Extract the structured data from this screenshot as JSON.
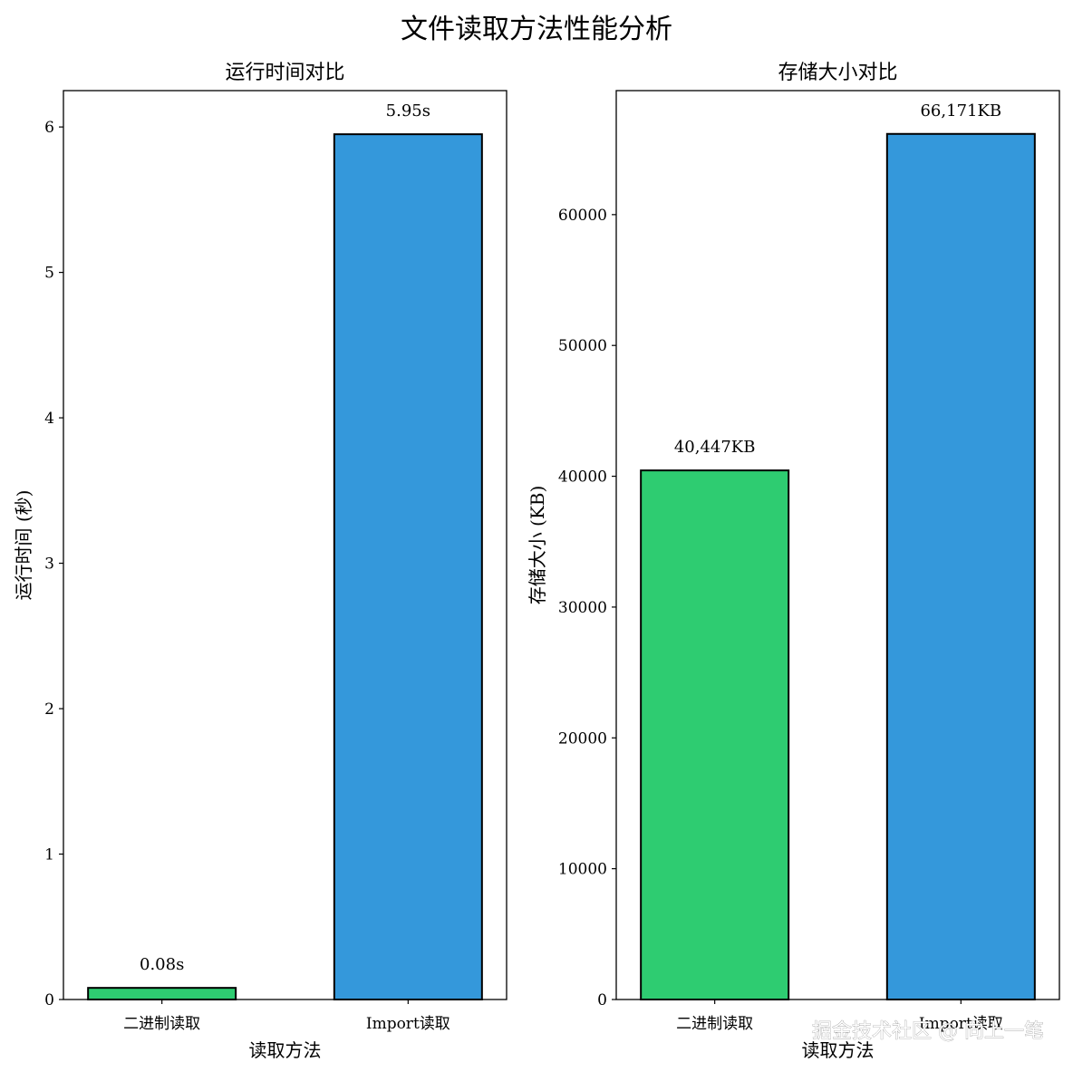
{
  "figure": {
    "title": "文件读取方法性能分析",
    "watermark": "掘金技术社区 @ 向上一笔"
  },
  "chart_data": [
    {
      "type": "bar",
      "title": "运行时间对比",
      "xlabel": "读取方法",
      "ylabel": "运行时间 (秒)",
      "categories": [
        "二进制读取",
        "Import读取"
      ],
      "values": [
        0.08,
        5.95
      ],
      "data_labels": [
        "0.08s",
        "5.95s"
      ],
      "colors": [
        "#2ecc71",
        "#3498db"
      ],
      "edge_color": "#000000",
      "ylim": [
        0,
        6.25
      ],
      "yticks": [
        0,
        1,
        2,
        3,
        4,
        5,
        6
      ],
      "grid": false
    },
    {
      "type": "bar",
      "title": "存储大小对比",
      "xlabel": "读取方法",
      "ylabel": "存储大小 (KB)",
      "categories": [
        "二进制读取",
        "Import读取"
      ],
      "values": [
        40447,
        66171
      ],
      "data_labels": [
        "40,447KB",
        "66,171KB"
      ],
      "colors": [
        "#2ecc71",
        "#3498db"
      ],
      "edge_color": "#000000",
      "ylim": [
        0,
        69480
      ],
      "yticks": [
        0,
        10000,
        20000,
        30000,
        40000,
        50000,
        60000
      ],
      "grid": false
    }
  ]
}
